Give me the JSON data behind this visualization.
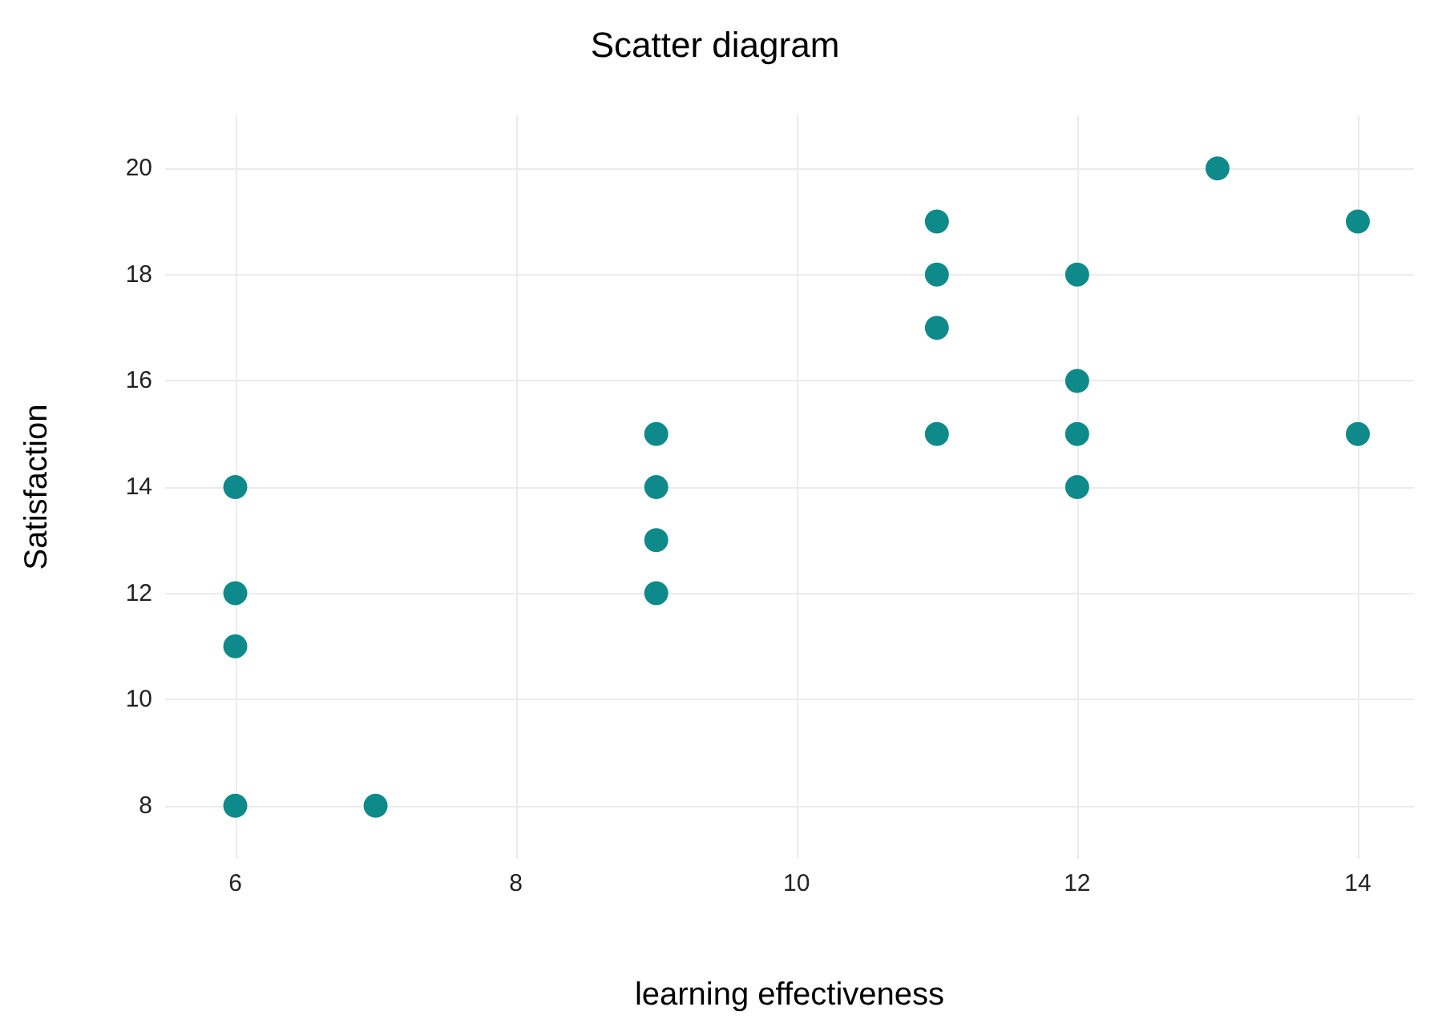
{
  "chart_data": {
    "type": "scatter",
    "title": "Scatter diagram",
    "xlabel": "learning effectiveness",
    "ylabel": "Satisfaction",
    "x": [
      6,
      6,
      6,
      6,
      7,
      9,
      9,
      9,
      9,
      11,
      11,
      11,
      11,
      12,
      12,
      12,
      12,
      13,
      14,
      14
    ],
    "series": [
      {
        "color": "#0e8a8a",
        "values": [
          14,
          12,
          11,
          8,
          8,
          15,
          14,
          13,
          12,
          19,
          18,
          17,
          15,
          18,
          16,
          15,
          14,
          20,
          19,
          15
        ]
      }
    ],
    "xlim": [
      5.5,
      14.4
    ],
    "xticks": [
      6,
      8,
      10,
      12,
      14
    ],
    "ylim": [
      7,
      21
    ],
    "yticks": [
      8,
      10,
      12,
      14,
      16,
      18,
      20
    ],
    "grid": true,
    "marker": "circle"
  }
}
